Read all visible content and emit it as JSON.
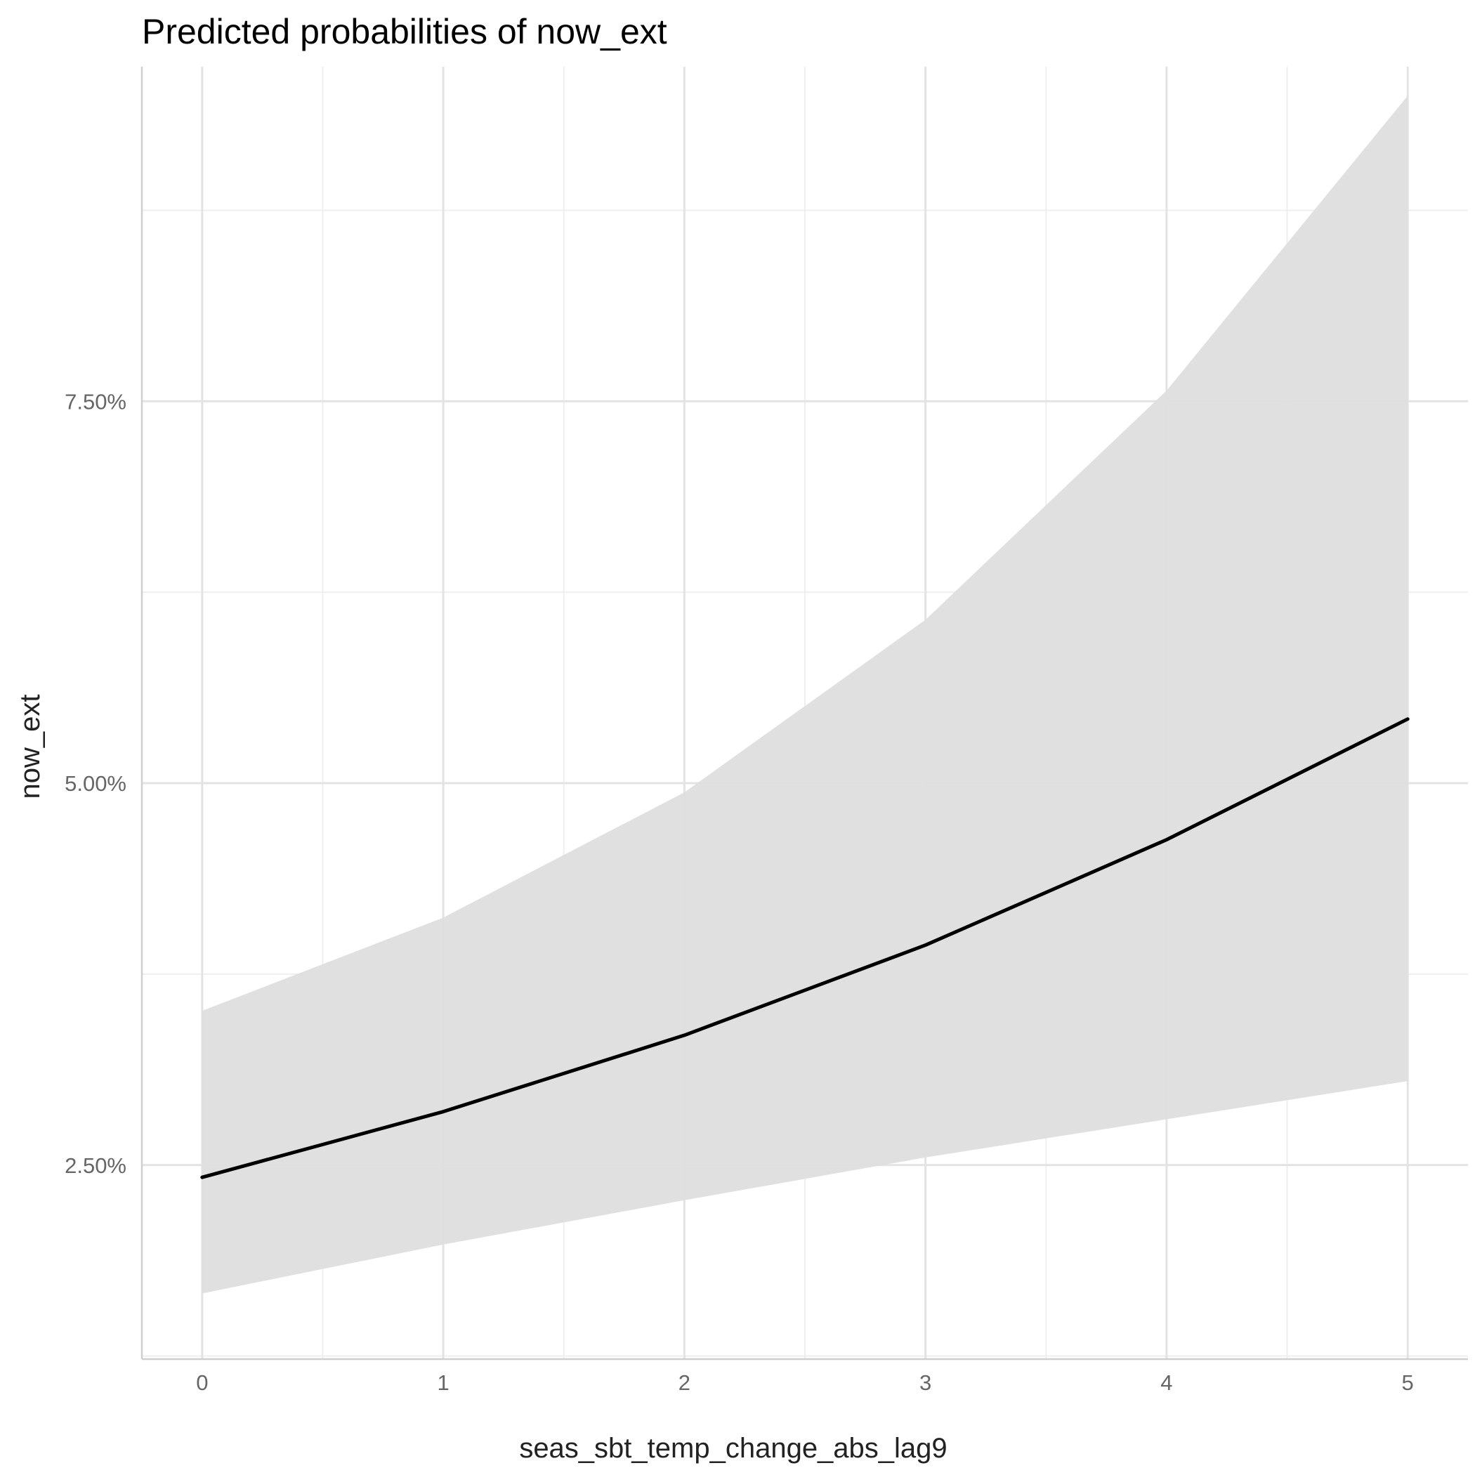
{
  "chart_data": {
    "type": "line",
    "title": "Predicted probabilities of now_ext",
    "xlabel": "seas_sbt_temp_change_abs_lag9",
    "ylabel": "now_ext",
    "xlim": [
      -0.25,
      5.25
    ],
    "ylim": [
      0.0123,
      0.0969
    ],
    "x_ticks": [
      0,
      1,
      2,
      3,
      4,
      5
    ],
    "x_tick_labels": [
      "0",
      "1",
      "2",
      "3",
      "4",
      "5"
    ],
    "y_ticks": [
      0.025,
      0.05,
      0.075
    ],
    "y_tick_labels": [
      "2.50%",
      "5.00%",
      "7.50%"
    ],
    "grid": true,
    "legend": "none",
    "series": [
      {
        "x": [
          0,
          1,
          2,
          3,
          4,
          5
        ],
        "values": [
          0.0242,
          0.0285,
          0.0335,
          0.0394,
          0.0463,
          0.0542
        ],
        "ci_low": [
          0.0166,
          0.0198,
          0.0227,
          0.0255,
          0.028,
          0.0305
        ],
        "ci_high": [
          0.0351,
          0.0412,
          0.0494,
          0.0607,
          0.0757,
          0.095
        ]
      }
    ],
    "colors": {
      "line": "#000000",
      "ribbon": "#dedede"
    }
  }
}
